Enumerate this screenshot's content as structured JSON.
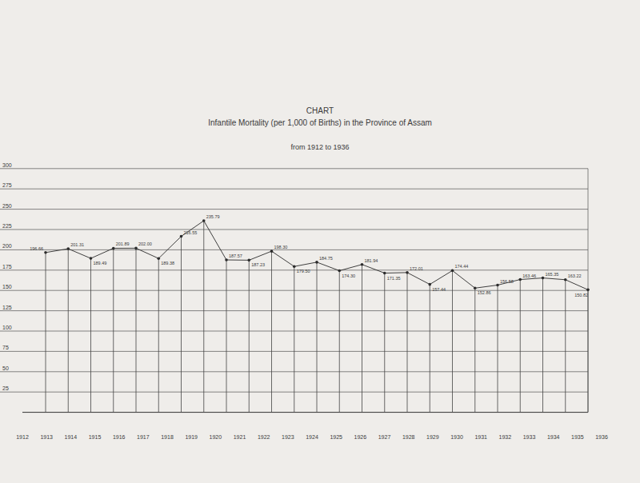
{
  "chart_data": {
    "type": "line",
    "title": "CHART",
    "subtitle": "Infantile Mortality (per 1,000 of Births) in the Province of Assam",
    "annotations": [
      "from 1912 to 1936"
    ],
    "categories": [
      "1912",
      "1913",
      "1914",
      "1915",
      "1916",
      "1917",
      "1918",
      "1919",
      "1920",
      "1921",
      "1922",
      "1923",
      "1924",
      "1925",
      "1926",
      "1927",
      "1928",
      "1929",
      "1930",
      "1931",
      "1932",
      "1933",
      "1934",
      "1935",
      "1936"
    ],
    "values": [
      196.66,
      201.31,
      189.49,
      201.89,
      202.0,
      189.38,
      216.55,
      235.79,
      187.57,
      187.23,
      198.3,
      179.5,
      184.75,
      174.3,
      181.94,
      171.35,
      172.01,
      157.44,
      174.44,
      152.86,
      156.58,
      163.46,
      165.35,
      163.22,
      150.82
    ],
    "value_labels": [
      "196.66",
      "201.31",
      "189.49",
      "201.89",
      "202.00",
      "189.38",
      "216.55",
      "235.79",
      "187.57",
      "187.23",
      "198.30",
      "179.50",
      "184.75",
      "174.30",
      "181.94",
      "171.35",
      "172.01",
      "157.44",
      "174.44",
      "152.86",
      "156.58",
      "163.46",
      "165.35",
      "163.22",
      "150.82"
    ],
    "color": "#2b2b2b",
    "marker": "circle",
    "data_labels": true,
    "grid": true,
    "ylim": [
      0,
      300
    ],
    "yticks": [
      25,
      50,
      75,
      100,
      125,
      150,
      175,
      200,
      225,
      250,
      275,
      300
    ]
  }
}
